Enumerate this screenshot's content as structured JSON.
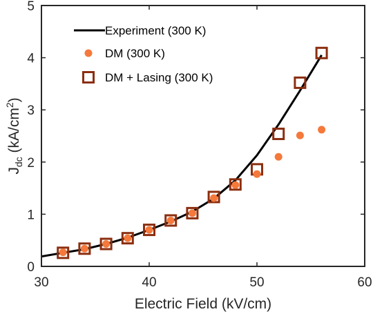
{
  "chart_data": {
    "type": "scatter",
    "xlabel": "Electric Field (kV/cm)",
    "ylabel": {
      "base": "J",
      "sub": "dc",
      "mid": " (kA/cm",
      "sup": "2",
      "end": ")"
    },
    "xlim": [
      30,
      60
    ],
    "ylim": [
      0,
      5
    ],
    "xticks": [
      "30",
      "40",
      "50",
      "60"
    ],
    "yticks": [
      "0",
      "1",
      "2",
      "3",
      "4",
      "5"
    ],
    "grid": false,
    "legend_position": "top-left",
    "series": [
      {
        "name": "Experiment (300 K)",
        "kind": "line",
        "color": "#000000",
        "x": [
          30,
          32,
          34,
          36,
          38,
          40,
          42,
          44,
          46,
          48,
          50,
          52,
          54,
          56
        ],
        "y": [
          0.19,
          0.26,
          0.33,
          0.43,
          0.55,
          0.7,
          0.86,
          1.05,
          1.3,
          1.65,
          2.13,
          2.72,
          3.37,
          4.05
        ]
      },
      {
        "name": "DM (300 K)",
        "kind": "dot",
        "color": "#f4793b",
        "x": [
          32,
          34,
          36,
          38,
          40,
          42,
          44,
          46,
          48,
          50,
          52,
          54,
          56
        ],
        "y": [
          0.27,
          0.34,
          0.43,
          0.54,
          0.7,
          0.88,
          1.02,
          1.31,
          1.56,
          1.77,
          2.1,
          2.51,
          2.62
        ]
      },
      {
        "name": "DM + Lasing (300 K)",
        "kind": "square",
        "color": "#8b2e0f",
        "x": [
          32,
          34,
          36,
          38,
          40,
          42,
          44,
          46,
          48,
          50,
          52,
          54,
          56
        ],
        "y": [
          0.26,
          0.34,
          0.43,
          0.54,
          0.7,
          0.88,
          1.02,
          1.33,
          1.57,
          1.86,
          2.54,
          3.52,
          4.09
        ]
      }
    ]
  }
}
